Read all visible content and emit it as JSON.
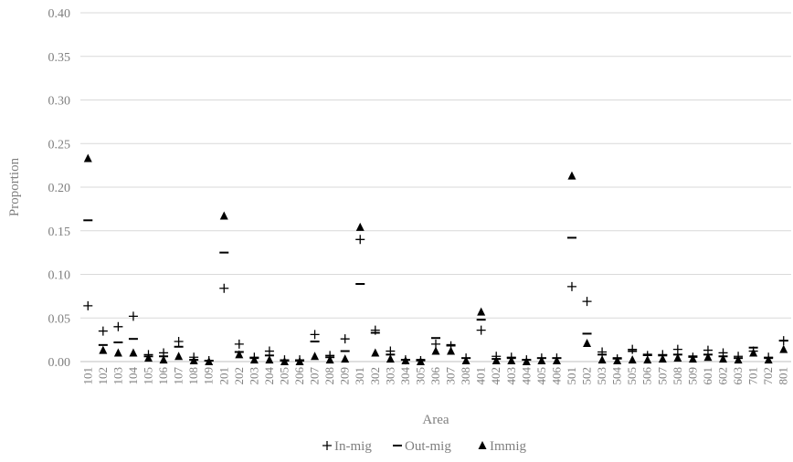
{
  "chart_data": {
    "type": "scatter",
    "xlabel": "Area",
    "ylabel": "Proportion",
    "ylim": [
      0,
      0.4
    ],
    "yticks": [
      "0.00",
      "0.05",
      "0.10",
      "0.15",
      "0.20",
      "0.25",
      "0.30",
      "0.35",
      "0.40"
    ],
    "grid": "horizontal",
    "legend_position": "bottom",
    "categories": [
      "101",
      "102",
      "103",
      "104",
      "105",
      "106",
      "107",
      "108",
      "109",
      "201",
      "202",
      "203",
      "204",
      "205",
      "206",
      "207",
      "208",
      "209",
      "301",
      "302",
      "303",
      "304",
      "305",
      "306",
      "307",
      "308",
      "401",
      "402",
      "403",
      "404",
      "405",
      "406",
      "501",
      "502",
      "503",
      "504",
      "505",
      "506",
      "507",
      "508",
      "509",
      "601",
      "602",
      "603",
      "701",
      "702",
      "801"
    ],
    "series": [
      {
        "name": "In-mig",
        "marker": "plus",
        "values": [
          0.064,
          0.035,
          0.04,
          0.052,
          0.008,
          0.01,
          0.023,
          0.005,
          0.001,
          0.084,
          0.02,
          0.005,
          0.012,
          0.002,
          0.002,
          0.031,
          0.007,
          0.026,
          0.14,
          0.036,
          0.012,
          0.002,
          0.001,
          0.02,
          0.018,
          0.004,
          0.036,
          0.006,
          0.005,
          0.002,
          0.004,
          0.004,
          0.086,
          0.069,
          0.011,
          0.003,
          0.014,
          0.007,
          0.008,
          0.014,
          0.005,
          0.013,
          0.01,
          0.006,
          0.012,
          0.005,
          0.024
        ]
      },
      {
        "name": "Out-mig",
        "marker": "dash",
        "values": [
          0.162,
          0.019,
          0.022,
          0.026,
          0.006,
          0.006,
          0.017,
          0.002,
          0.001,
          0.125,
          0.011,
          0.004,
          0.007,
          0.001,
          0.001,
          0.023,
          0.005,
          0.012,
          0.089,
          0.033,
          0.008,
          0.002,
          0.002,
          0.027,
          0.019,
          0.004,
          0.048,
          0.003,
          0.004,
          0.002,
          0.004,
          0.004,
          0.142,
          0.032,
          0.008,
          0.004,
          0.012,
          0.008,
          0.007,
          0.008,
          0.006,
          0.008,
          0.006,
          0.004,
          0.016,
          0.004,
          0.024
        ]
      },
      {
        "name": "Immig",
        "marker": "triangle",
        "values": [
          0.233,
          0.013,
          0.01,
          0.01,
          0.004,
          0.002,
          0.006,
          0.001,
          0.0,
          0.167,
          0.008,
          0.002,
          0.002,
          0.0,
          0.0,
          0.006,
          0.002,
          0.003,
          0.154,
          0.01,
          0.003,
          0.001,
          0.0,
          0.012,
          0.012,
          0.001,
          0.057,
          0.001,
          0.001,
          0.0,
          0.001,
          0.001,
          0.213,
          0.021,
          0.002,
          0.001,
          0.002,
          0.002,
          0.003,
          0.004,
          0.003,
          0.005,
          0.003,
          0.002,
          0.01,
          0.002,
          0.014
        ]
      }
    ]
  },
  "colors": {
    "marker": "#000000",
    "gridline": "#d9d9d9",
    "text": "#7f7f7f",
    "axis_line": "#bfbfbf"
  }
}
